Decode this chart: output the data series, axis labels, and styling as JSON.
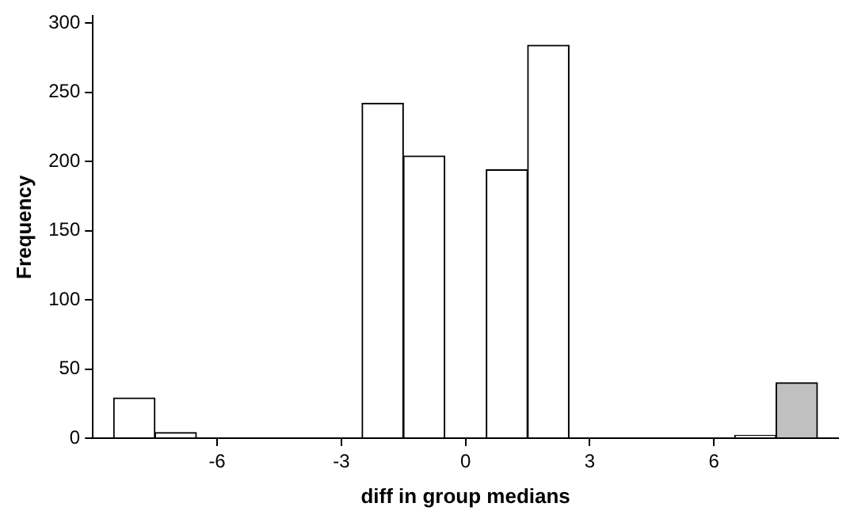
{
  "chart_data": {
    "type": "histogram",
    "xlabel": "diff in group medians",
    "ylabel": "Frequency",
    "bins": [
      -8.5,
      -7.5,
      -6.5,
      -5.5,
      -4.5,
      -3.5,
      -2.5,
      -1.5,
      -0.5,
      0.5,
      1.5,
      2.5,
      3.5,
      4.5,
      5.5,
      6.5,
      7.5,
      8.5
    ],
    "values": [
      29,
      4,
      0,
      0,
      0,
      0,
      242,
      204,
      0,
      194,
      284,
      0,
      0,
      0,
      0,
      2,
      40
    ],
    "colors": [
      "#ffffff",
      "#ffffff",
      "#ffffff",
      "#ffffff",
      "#ffffff",
      "#ffffff",
      "#ffffff",
      "#ffffff",
      "#ffffff",
      "#ffffff",
      "#ffffff",
      "#ffffff",
      "#ffffff",
      "#ffffff",
      "#ffffff",
      "#ffffff",
      "#c0c0c0"
    ],
    "xlim": [
      -9,
      9
    ],
    "xticks": [
      -6,
      -3,
      0,
      3,
      6
    ],
    "ylim": [
      0,
      305
    ],
    "yticks": [
      0,
      50,
      100,
      150,
      200,
      250,
      300
    ],
    "grid": false,
    "legend": false
  }
}
